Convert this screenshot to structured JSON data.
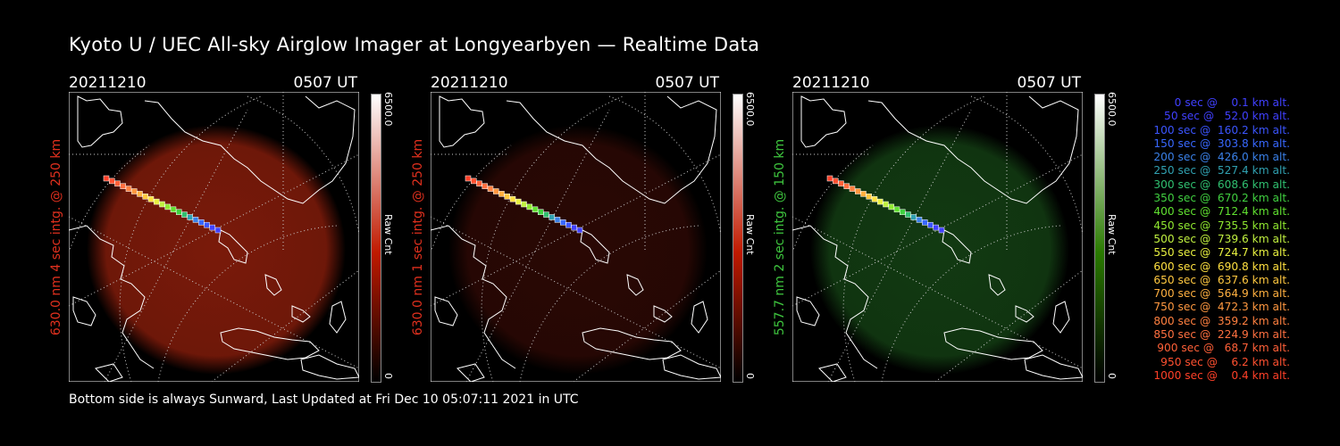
{
  "title": "Kyoto U / UEC All-sky Airglow Imager at Longyearbyen — Realtime Data",
  "footer": "Bottom side is always Sunward, Last Updated at Fri Dec 10 05:07:11 2021 in UTC",
  "panels": [
    {
      "date": "20211210",
      "time": "0507 UT",
      "ylabel": "630.0 nm 4 sec intg. @ 250 km",
      "label_color": "#e0301e",
      "glow_color": "#7a1a0a",
      "cbar_top_color": "#ffffff",
      "cbar_bottom_color": "#c01a00",
      "cbar_max": "6500.0",
      "cbar_unit": "Raw Cnt",
      "cbar_min": "0"
    },
    {
      "date": "20211210",
      "time": "0507 UT",
      "ylabel": "630.0 nm 1 sec intg. @ 250 km",
      "label_color": "#e0301e",
      "glow_color": "#2a0804",
      "cbar_top_color": "#ffffff",
      "cbar_bottom_color": "#c01a00",
      "cbar_max": "6500.0",
      "cbar_unit": "Raw Cnt",
      "cbar_min": "0"
    },
    {
      "date": "20211210",
      "time": "0507 UT",
      "ylabel": "557.7 nm 2 sec intg. @ 150 km",
      "label_color": "#3ec53e",
      "glow_color": "#123a12",
      "cbar_top_color": "#ffffff",
      "cbar_bottom_color": "#2a7a00",
      "cbar_max": "6500.0",
      "cbar_unit": "Raw Cnt",
      "cbar_min": "0"
    }
  ],
  "legend": [
    {
      "text": "   0 sec @    0.1 km alt.",
      "color": "#4040ff"
    },
    {
      "text": "  50 sec @   52.0 km alt.",
      "color": "#4040ff"
    },
    {
      "text": " 100 sec @  160.2 km alt.",
      "color": "#3b55ff"
    },
    {
      "text": " 150 sec @  303.8 km alt.",
      "color": "#3868ff"
    },
    {
      "text": " 200 sec @  426.0 km alt.",
      "color": "#3a80e8"
    },
    {
      "text": " 250 sec @  527.4 km alt.",
      "color": "#30a0b0"
    },
    {
      "text": " 300 sec @  608.6 km alt.",
      "color": "#30c070"
    },
    {
      "text": " 350 sec @  670.2 km alt.",
      "color": "#40d040"
    },
    {
      "text": " 400 sec @  712.4 km alt.",
      "color": "#60e030"
    },
    {
      "text": " 450 sec @  735.5 km alt.",
      "color": "#90e830"
    },
    {
      "text": " 500 sec @  739.6 km alt.",
      "color": "#c0f040"
    },
    {
      "text": " 550 sec @  724.7 km alt.",
      "color": "#e8f040"
    },
    {
      "text": " 600 sec @  690.8 km alt.",
      "color": "#ffe040"
    },
    {
      "text": " 650 sec @  637.6 km alt.",
      "color": "#ffc840"
    },
    {
      "text": " 700 sec @  564.9 km alt.",
      "color": "#ffb040"
    },
    {
      "text": " 750 sec @  472.3 km alt.",
      "color": "#ff9840"
    },
    {
      "text": " 800 sec @  359.2 km alt.",
      "color": "#ff8040"
    },
    {
      "text": " 850 sec @  224.9 km alt.",
      "color": "#ff7040"
    },
    {
      "text": " 900 sec @   68.7 km alt.",
      "color": "#ff6038"
    },
    {
      "text": " 950 sec @    6.2 km alt.",
      "color": "#ff5030"
    },
    {
      "text": "1000 sec @    0.4 km alt.",
      "color": "#ff4028"
    }
  ]
}
